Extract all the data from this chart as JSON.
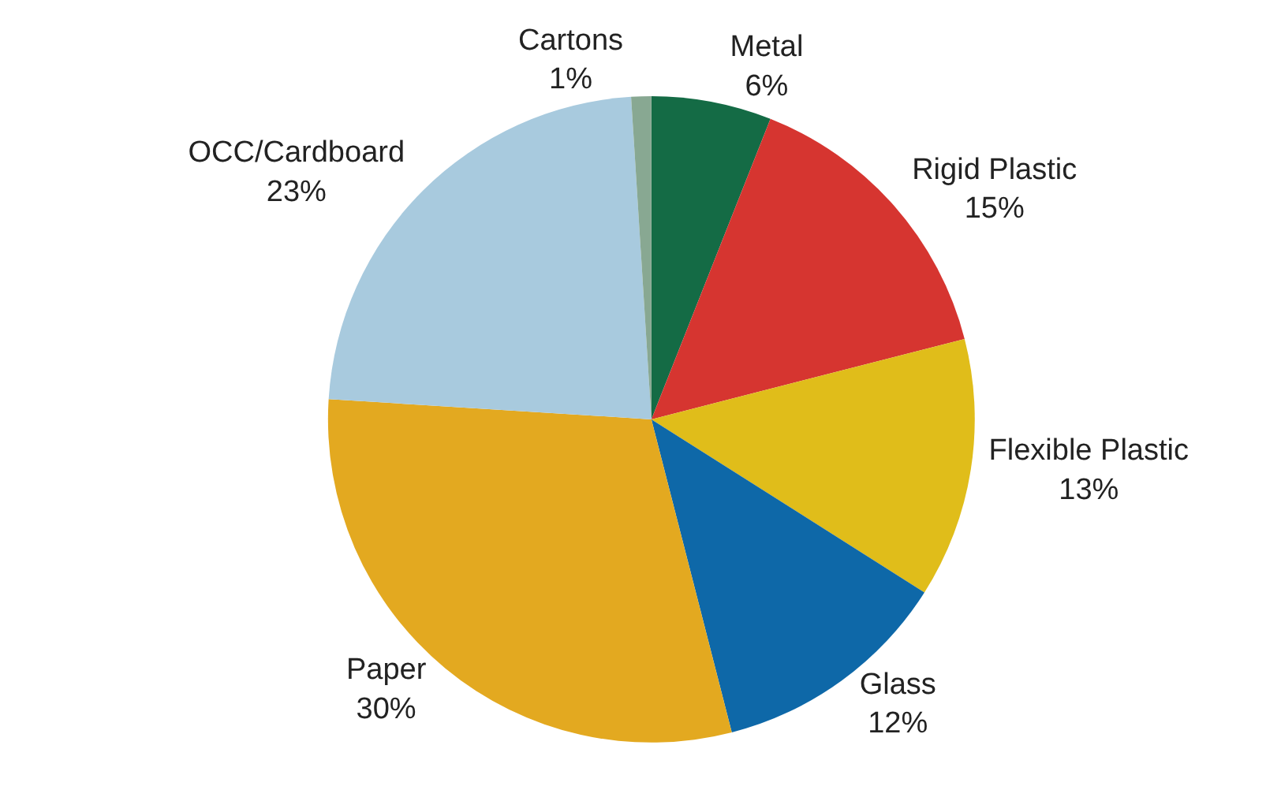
{
  "chart_data": {
    "type": "pie",
    "categories": [
      "Metal",
      "Rigid Plastic",
      "Flexible Plastic",
      "Glass",
      "Paper",
      "OCC/Cardboard",
      "Cartons"
    ],
    "values": [
      6,
      15,
      13,
      12,
      30,
      23,
      1
    ],
    "value_labels": [
      "6%",
      "15%",
      "13%",
      "12%",
      "30%",
      "23%",
      "1%"
    ],
    "colors": [
      "#146b45",
      "#d63530",
      "#e0bd1a",
      "#0e68a8",
      "#e3a920",
      "#a8cade",
      "#88a892"
    ],
    "legend": false
  }
}
